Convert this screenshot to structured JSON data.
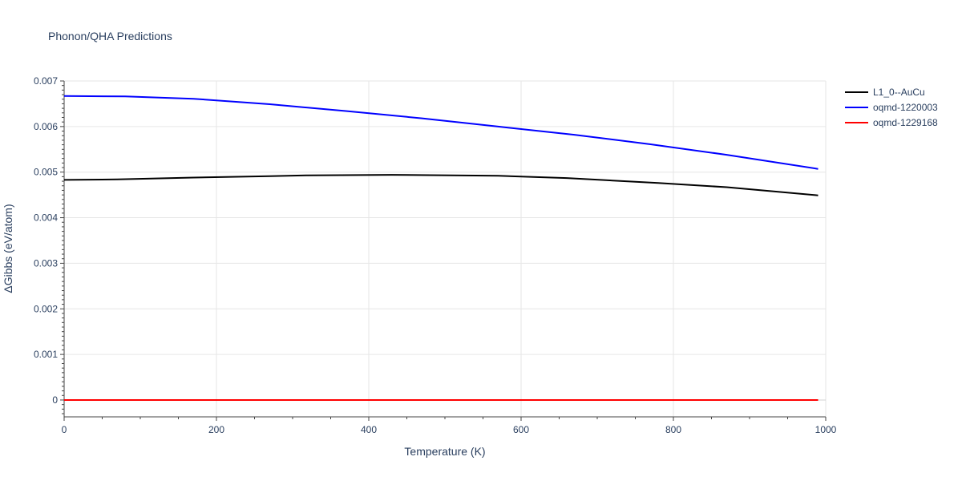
{
  "chart_data": {
    "type": "line",
    "title": "Phonon/QHA Predictions",
    "xlabel": "Temperature (K)",
    "ylabel": "ΔGibbs (eV/atom)",
    "xlim": [
      0,
      1000
    ],
    "ylim": [
      -0.00037,
      0.007
    ],
    "xticks": [
      0,
      200,
      400,
      600,
      800,
      1000
    ],
    "xtick_labels": [
      "0",
      "200",
      "400",
      "600",
      "800",
      "1000"
    ],
    "yticks": [
      0,
      0.001,
      0.002,
      0.003,
      0.004,
      0.005,
      0.006,
      0.007
    ],
    "ytick_labels": [
      "0",
      "0.001",
      "0.002",
      "0.003",
      "0.004",
      "0.005",
      "0.006",
      "0.007"
    ],
    "grid": true,
    "legend_position": "top-right, outside plot",
    "series": [
      {
        "name": "L1_0--AuCu",
        "color": "#000000",
        "x": [
          0,
          70,
          170,
          270,
          320,
          430,
          570,
          660,
          780,
          870,
          990
        ],
        "y": [
          0.00483,
          0.00484,
          0.00488,
          0.00491,
          0.00493,
          0.00494,
          0.00492,
          0.00487,
          0.00476,
          0.00467,
          0.00449
        ]
      },
      {
        "name": "oqmd-1220003",
        "color": "#0000ff",
        "x": [
          0,
          80,
          170,
          270,
          370,
          470,
          570,
          670,
          770,
          870,
          990
        ],
        "y": [
          0.00667,
          0.00666,
          0.00661,
          0.00649,
          0.00634,
          0.00618,
          0.006,
          0.00582,
          0.00561,
          0.00538,
          0.00507
        ]
      },
      {
        "name": "oqmd-1229168",
        "color": "#ff0000",
        "x": [
          0,
          990
        ],
        "y": [
          0,
          0
        ]
      }
    ]
  }
}
